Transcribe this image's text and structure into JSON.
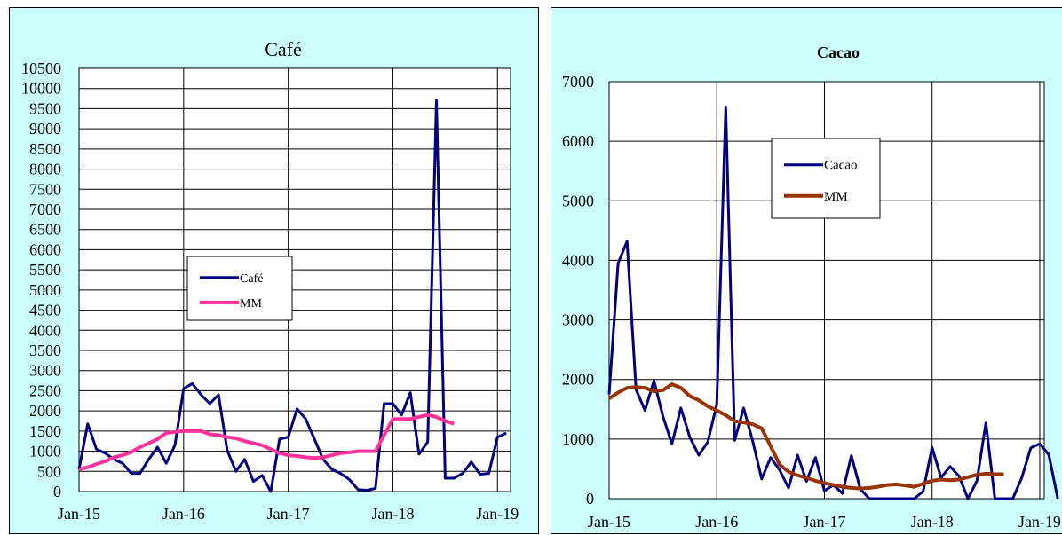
{
  "chart_data": [
    {
      "type": "line",
      "title": "Café",
      "x_ticks": [
        "Jan-15",
        "Jan-16",
        "Jan-17",
        "Jan-18",
        "Jan-19"
      ],
      "y_ticks": [
        "0",
        "500",
        "1000",
        "1500",
        "2000",
        "2500",
        "3000",
        "3500",
        "4000",
        "4500",
        "5000",
        "5500",
        "6000",
        "6500",
        "7000",
        "7500",
        "8000",
        "8500",
        "9000",
        "9500",
        "10000",
        "10500"
      ],
      "ylim": [
        0,
        10500
      ],
      "xlim": [
        "Jan-15",
        "Jan-19"
      ],
      "grid": true,
      "legend_position": "center-left",
      "series": [
        {
          "name": "Café",
          "color": "#000080",
          "points": [
            [
              0,
              550
            ],
            [
              1,
              1680
            ],
            [
              2,
              1050
            ],
            [
              3,
              950
            ],
            [
              4,
              800
            ],
            [
              5,
              700
            ],
            [
              6,
              450
            ],
            [
              7,
              450
            ],
            [
              8,
              800
            ],
            [
              9,
              1100
            ],
            [
              10,
              700
            ],
            [
              11,
              1150
            ],
            [
              12,
              2550
            ],
            [
              13,
              2680
            ],
            [
              14,
              2400
            ],
            [
              15,
              2180
            ],
            [
              16,
              2400
            ],
            [
              17,
              1020
            ],
            [
              18,
              500
            ],
            [
              19,
              800
            ],
            [
              20,
              250
            ],
            [
              21,
              400
            ],
            [
              22,
              0
            ],
            [
              23,
              1300
            ],
            [
              24,
              1350
            ],
            [
              25,
              2050
            ],
            [
              26,
              1800
            ],
            [
              27,
              1300
            ],
            [
              28,
              800
            ],
            [
              29,
              550
            ],
            [
              30,
              450
            ],
            [
              31,
              300
            ],
            [
              32,
              50
            ],
            [
              33,
              30
            ],
            [
              34,
              80
            ],
            [
              35,
              2180
            ],
            [
              36,
              2180
            ],
            [
              37,
              1900
            ],
            [
              38,
              2450
            ],
            [
              39,
              930
            ],
            [
              40,
              1230
            ],
            [
              41,
              9700
            ],
            [
              42,
              330
            ],
            [
              43,
              330
            ],
            [
              44,
              450
            ],
            [
              45,
              730
            ],
            [
              46,
              430
            ],
            [
              47,
              450
            ],
            [
              48,
              1350
            ],
            [
              49,
              1450
            ]
          ]
        },
        {
          "name": "MM",
          "color": "#ff3399",
          "points": [
            [
              0,
              550
            ],
            [
              1,
              600
            ],
            [
              2,
              680
            ],
            [
              3,
              750
            ],
            [
              4,
              850
            ],
            [
              5,
              900
            ],
            [
              6,
              980
            ],
            [
              7,
              1100
            ],
            [
              8,
              1200
            ],
            [
              9,
              1300
            ],
            [
              10,
              1450
            ],
            [
              11,
              1480
            ],
            [
              12,
              1500
            ],
            [
              13,
              1500
            ],
            [
              14,
              1500
            ],
            [
              15,
              1420
            ],
            [
              16,
              1400
            ],
            [
              17,
              1350
            ],
            [
              18,
              1320
            ],
            [
              19,
              1250
            ],
            [
              20,
              1200
            ],
            [
              21,
              1150
            ],
            [
              22,
              1050
            ],
            [
              23,
              950
            ],
            [
              24,
              900
            ],
            [
              25,
              880
            ],
            [
              26,
              850
            ],
            [
              27,
              830
            ],
            [
              28,
              850
            ],
            [
              29,
              900
            ],
            [
              30,
              950
            ],
            [
              31,
              970
            ],
            [
              32,
              1000
            ],
            [
              33,
              1000
            ],
            [
              34,
              1000
            ],
            [
              35,
              1400
            ],
            [
              36,
              1800
            ],
            [
              37,
              1800
            ],
            [
              38,
              1800
            ],
            [
              39,
              1850
            ],
            [
              40,
              1900
            ],
            [
              41,
              1850
            ],
            [
              42,
              1750
            ],
            [
              43,
              1680
            ]
          ]
        }
      ]
    },
    {
      "type": "line",
      "title": "Cacao",
      "x_ticks": [
        "Jan-15",
        "Jan-16",
        "Jan-17",
        "Jan-18",
        "Jan-19"
      ],
      "y_ticks": [
        "0",
        "1000",
        "2000",
        "3000",
        "4000",
        "5000",
        "6000",
        "7000"
      ],
      "ylim": [
        0,
        7000
      ],
      "xlim": [
        "Jan-15",
        "Jan-19"
      ],
      "grid": true,
      "legend_position": "top-center",
      "series": [
        {
          "name": "Cacao",
          "color": "#000080",
          "points": [
            [
              0,
              1750
            ],
            [
              1,
              3950
            ],
            [
              2,
              4320
            ],
            [
              3,
              1830
            ],
            [
              4,
              1480
            ],
            [
              5,
              1980
            ],
            [
              6,
              1380
            ],
            [
              7,
              920
            ],
            [
              8,
              1520
            ],
            [
              9,
              1030
            ],
            [
              10,
              730
            ],
            [
              11,
              950
            ],
            [
              12,
              1580
            ],
            [
              13,
              6560
            ],
            [
              14,
              980
            ],
            [
              15,
              1520
            ],
            [
              16,
              970
            ],
            [
              17,
              330
            ],
            [
              18,
              690
            ],
            [
              19,
              480
            ],
            [
              20,
              180
            ],
            [
              21,
              730
            ],
            [
              22,
              290
            ],
            [
              23,
              690
            ],
            [
              24,
              130
            ],
            [
              25,
              230
            ],
            [
              26,
              90
            ],
            [
              27,
              720
            ],
            [
              28,
              160
            ],
            [
              29,
              0
            ],
            [
              30,
              0
            ],
            [
              31,
              0
            ],
            [
              32,
              0
            ],
            [
              33,
              0
            ],
            [
              34,
              0
            ],
            [
              35,
              120
            ],
            [
              36,
              860
            ],
            [
              37,
              350
            ],
            [
              38,
              540
            ],
            [
              39,
              380
            ],
            [
              40,
              0
            ],
            [
              41,
              300
            ],
            [
              42,
              1270
            ],
            [
              43,
              0
            ],
            [
              44,
              0
            ],
            [
              45,
              0
            ],
            [
              46,
              350
            ],
            [
              47,
              850
            ],
            [
              48,
              920
            ],
            [
              49,
              740
            ],
            [
              50,
              0
            ]
          ]
        },
        {
          "name": "MM",
          "color": "#993300",
          "points": [
            [
              0,
              1680
            ],
            [
              1,
              1780
            ],
            [
              2,
              1860
            ],
            [
              3,
              1870
            ],
            [
              4,
              1860
            ],
            [
              5,
              1800
            ],
            [
              6,
              1820
            ],
            [
              7,
              1920
            ],
            [
              8,
              1860
            ],
            [
              9,
              1720
            ],
            [
              10,
              1650
            ],
            [
              11,
              1550
            ],
            [
              12,
              1480
            ],
            [
              13,
              1400
            ],
            [
              14,
              1300
            ],
            [
              15,
              1280
            ],
            [
              16,
              1250
            ],
            [
              17,
              1180
            ],
            [
              18,
              880
            ],
            [
              19,
              570
            ],
            [
              20,
              450
            ],
            [
              21,
              390
            ],
            [
              22,
              350
            ],
            [
              23,
              300
            ],
            [
              24,
              260
            ],
            [
              25,
              230
            ],
            [
              26,
              200
            ],
            [
              27,
              180
            ],
            [
              28,
              170
            ],
            [
              29,
              180
            ],
            [
              30,
              200
            ],
            [
              31,
              230
            ],
            [
              32,
              240
            ],
            [
              33,
              220
            ],
            [
              34,
              200
            ],
            [
              35,
              250
            ],
            [
              36,
              300
            ],
            [
              37,
              320
            ],
            [
              38,
              310
            ],
            [
              39,
              320
            ],
            [
              40,
              360
            ],
            [
              41,
              400
            ],
            [
              42,
              420
            ],
            [
              43,
              410
            ],
            [
              44,
              410
            ]
          ]
        }
      ]
    }
  ]
}
